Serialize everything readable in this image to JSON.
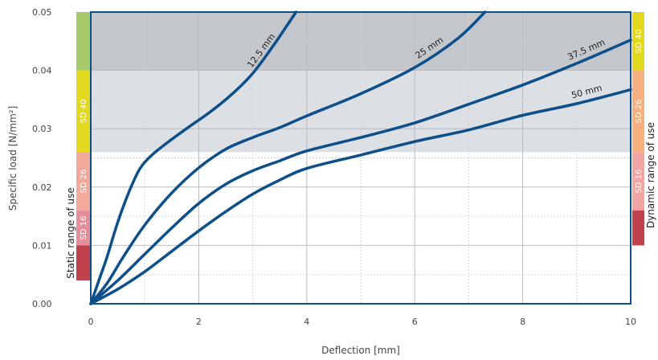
{
  "chart_data": {
    "type": "line",
    "title": "",
    "xlabel": "Deflection [mm]",
    "ylabel": "Specific load [N/mm²]",
    "xlim": [
      0,
      10
    ],
    "ylim": [
      0,
      0.05
    ],
    "x_ticks": [
      "0",
      "2",
      "4",
      "6",
      "8",
      "10"
    ],
    "y_ticks": [
      "0.00",
      "0.01",
      "0.02",
      "0.03",
      "0.04",
      "0.05"
    ],
    "grid": true,
    "series": [
      {
        "name": "12.5 mm",
        "color": "#0d4f8b",
        "points": [
          [
            0,
            0
          ],
          [
            0.15,
            0.004
          ],
          [
            0.3,
            0.008
          ],
          [
            0.5,
            0.014
          ],
          [
            0.7,
            0.019
          ],
          [
            0.9,
            0.023
          ],
          [
            1.1,
            0.0252
          ],
          [
            1.4,
            0.0275
          ],
          [
            1.8,
            0.0302
          ],
          [
            2.2,
            0.0328
          ],
          [
            2.6,
            0.0358
          ],
          [
            3.0,
            0.0395
          ],
          [
            3.4,
            0.0445
          ],
          [
            3.8,
            0.05
          ]
        ]
      },
      {
        "name": "25 mm",
        "color": "#0d4f8b",
        "points": [
          [
            0,
            0
          ],
          [
            0.3,
            0.0035
          ],
          [
            0.6,
            0.008
          ],
          [
            1.0,
            0.0135
          ],
          [
            1.5,
            0.019
          ],
          [
            2.0,
            0.0233
          ],
          [
            2.5,
            0.0265
          ],
          [
            3.0,
            0.0285
          ],
          [
            3.5,
            0.0302
          ],
          [
            4.0,
            0.0322
          ],
          [
            5.0,
            0.036
          ],
          [
            6.0,
            0.0405
          ],
          [
            6.8,
            0.0455
          ],
          [
            7.3,
            0.05
          ]
        ]
      },
      {
        "name": "37.5 mm",
        "color": "#0d4f8b",
        "points": [
          [
            0,
            0
          ],
          [
            0.5,
            0.004
          ],
          [
            1.0,
            0.0085
          ],
          [
            1.5,
            0.013
          ],
          [
            2.0,
            0.0172
          ],
          [
            2.5,
            0.0205
          ],
          [
            3.0,
            0.0228
          ],
          [
            3.5,
            0.0245
          ],
          [
            4.0,
            0.0262
          ],
          [
            5.0,
            0.0285
          ],
          [
            6.0,
            0.031
          ],
          [
            7.0,
            0.0342
          ],
          [
            8.0,
            0.0375
          ],
          [
            9.0,
            0.0412
          ],
          [
            10.0,
            0.0452
          ]
        ]
      },
      {
        "name": "50 mm",
        "color": "#0d4f8b",
        "points": [
          [
            0,
            0
          ],
          [
            0.5,
            0.0025
          ],
          [
            1.0,
            0.0055
          ],
          [
            1.5,
            0.009
          ],
          [
            2.0,
            0.0125
          ],
          [
            2.5,
            0.0158
          ],
          [
            3.0,
            0.0188
          ],
          [
            3.5,
            0.0212
          ],
          [
            4.0,
            0.0232
          ],
          [
            5.0,
            0.0255
          ],
          [
            6.0,
            0.0278
          ],
          [
            7.0,
            0.0298
          ],
          [
            8.0,
            0.0323
          ],
          [
            9.0,
            0.0343
          ],
          [
            10.0,
            0.0367
          ]
        ]
      }
    ],
    "shaded_bands": [
      {
        "y0": 0.026,
        "y1": 0.04,
        "color": "#dcdfe3"
      },
      {
        "y0": 0.04,
        "y1": 0.05,
        "color": "#c3c6cb"
      }
    ],
    "static_range": {
      "label": "Static range of use",
      "bands": [
        {
          "label": "",
          "y0": 0.04,
          "y1": 0.05,
          "color": "#a6c96a"
        },
        {
          "label": "SD 40",
          "y0": 0.026,
          "y1": 0.04,
          "color": "#e2d81e"
        },
        {
          "label": "SD 26",
          "y0": 0.016,
          "y1": 0.026,
          "color": "#f2a99a"
        },
        {
          "label": "SD 16",
          "y0": 0.01,
          "y1": 0.016,
          "color": "#e58d98"
        },
        {
          "label": "",
          "y0": 0.004,
          "y1": 0.01,
          "color": "#c0424d"
        }
      ]
    },
    "dynamic_range": {
      "label": "Dynamic range of use",
      "bands": [
        {
          "label": "SD 40",
          "y0": 0.04,
          "y1": 0.05,
          "color": "#e2d81e"
        },
        {
          "label": "SD 26",
          "y0": 0.026,
          "y1": 0.04,
          "color": "#f6b07f"
        },
        {
          "label": "SD 16",
          "y0": 0.016,
          "y1": 0.026,
          "color": "#f1a6a6"
        },
        {
          "label": "",
          "y0": 0.01,
          "y1": 0.016,
          "color": "#c0424d"
        }
      ]
    }
  }
}
